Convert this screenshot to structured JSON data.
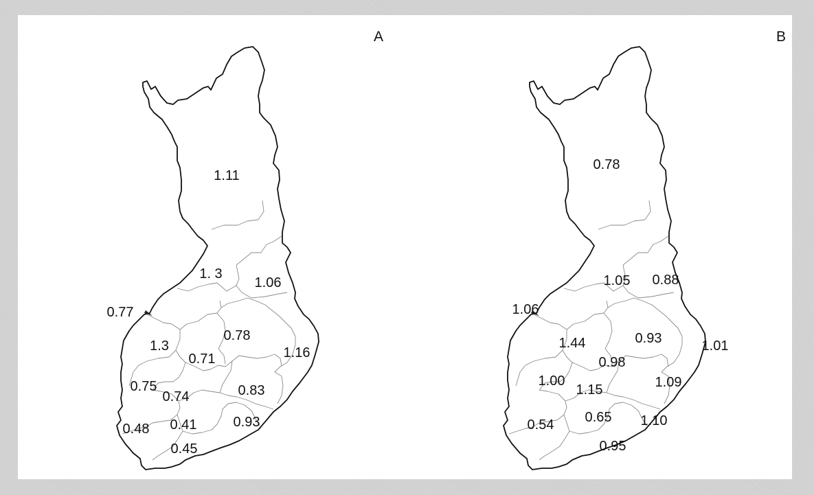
{
  "panels": [
    {
      "label": "A",
      "regions": [
        {
          "id": "lapland",
          "value": "1.11"
        },
        {
          "id": "north-ostrobothnia",
          "value": "1.  3"
        },
        {
          "id": "kainuu",
          "value": "1.06"
        },
        {
          "id": "central-ostrobothnia",
          "value": "0.77"
        },
        {
          "id": "south-ostrobothnia",
          "value": "1.3"
        },
        {
          "id": "north-savo",
          "value": "0.78"
        },
        {
          "id": "north-karelia",
          "value": "1.16"
        },
        {
          "id": "central-finland",
          "value": "0.71"
        },
        {
          "id": "satakunta",
          "value": "0.75"
        },
        {
          "id": "pirkanmaa",
          "value": "0.74"
        },
        {
          "id": "south-savo",
          "value": "0.83"
        },
        {
          "id": "southwest-finland",
          "value": "0.48"
        },
        {
          "id": "kanta-hame",
          "value": "0.41"
        },
        {
          "id": "kymenlaakso",
          "value": "0.93"
        },
        {
          "id": "uusimaa",
          "value": "0.45"
        }
      ]
    },
    {
      "label": "B",
      "regions": [
        {
          "id": "lapland",
          "value": "0.78"
        },
        {
          "id": "north-ostrobothnia",
          "value": "1.05"
        },
        {
          "id": "kainuu",
          "value": "0.88"
        },
        {
          "id": "central-ostrobothnia",
          "value": "1.06"
        },
        {
          "id": "south-ostrobothnia",
          "value": "1.44"
        },
        {
          "id": "north-savo",
          "value": "0.93"
        },
        {
          "id": "north-karelia",
          "value": "1.01"
        },
        {
          "id": "central-finland",
          "value": "0.98"
        },
        {
          "id": "satakunta",
          "value": "1.00"
        },
        {
          "id": "pirkanmaa",
          "value": "1.15"
        },
        {
          "id": "south-savo",
          "value": "1.09"
        },
        {
          "id": "southwest-finland",
          "value": "0.54"
        },
        {
          "id": "kanta-hame",
          "value": "0.65"
        },
        {
          "id": "kymenlaakso",
          "value": "1.10"
        },
        {
          "id": "uusimaa",
          "value": "0.95"
        }
      ]
    }
  ]
}
